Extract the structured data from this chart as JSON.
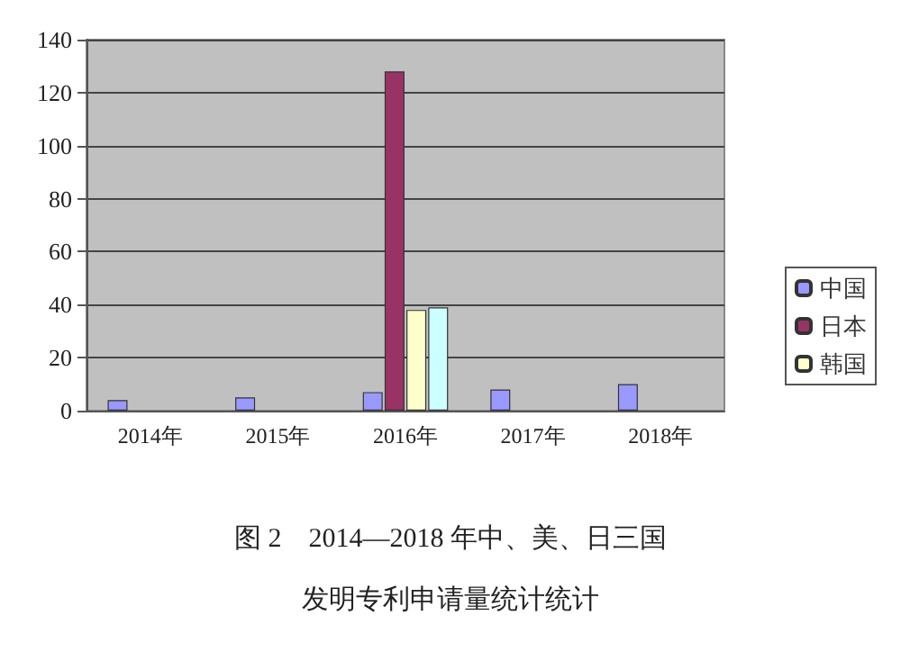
{
  "chart_data": {
    "type": "bar",
    "title": "图 2　2014—2018 年中、美、日三国",
    "subtitle": "发明专利申请量统计统计",
    "categories": [
      "2014年",
      "2015年",
      "2016年",
      "2017年",
      "2018年"
    ],
    "series": [
      {
        "name": "中国",
        "color": "#9999ff",
        "values": [
          4,
          5,
          7,
          8,
          10
        ]
      },
      {
        "name": "日本",
        "color": "#993366",
        "values": [
          null,
          null,
          128,
          null,
          null
        ]
      },
      {
        "name": "韩国",
        "color": "#ffffcc",
        "values": [
          null,
          null,
          38,
          null,
          null
        ]
      },
      {
        "color": "#ccffff",
        "values": [
          null,
          null,
          39,
          null,
          null
        ]
      }
    ],
    "ylim": [
      0,
      140
    ],
    "yticks": [
      0,
      20,
      40,
      60,
      80,
      100,
      120,
      140
    ],
    "grid": "y",
    "legend": "right"
  }
}
